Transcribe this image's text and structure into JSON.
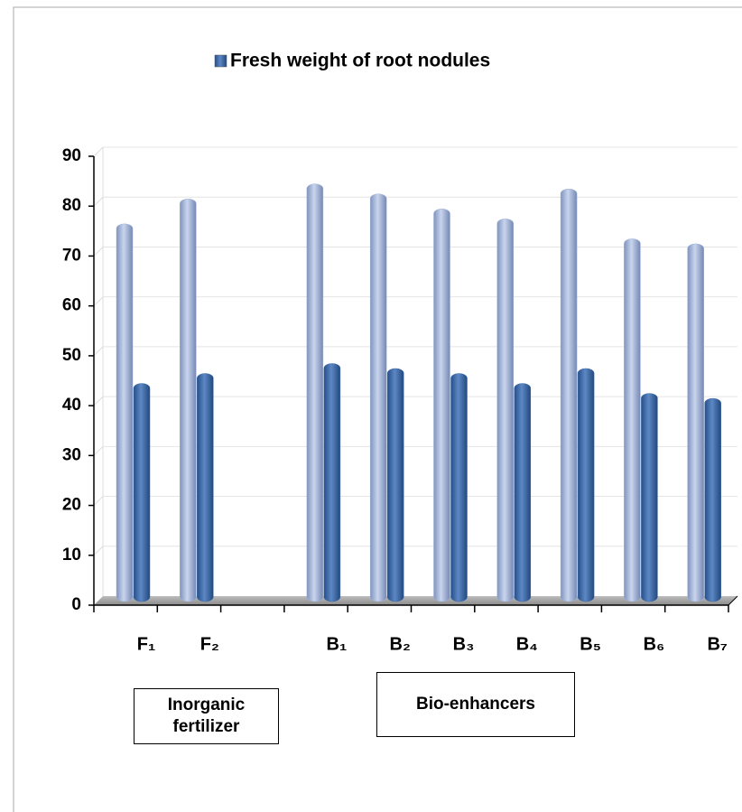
{
  "chart_data": {
    "type": "bar",
    "legend_title": null,
    "categories": [
      "F₁",
      "F₂",
      null,
      "B₁",
      "B₂",
      "B₃",
      "B₄",
      "B₅",
      "B₆",
      "B₇"
    ],
    "series": [
      {
        "color": "#9fb2d8",
        "values": [
          75,
          80,
          null,
          83,
          81,
          78,
          76,
          82,
          72,
          71
        ]
      },
      {
        "name": "Fresh weight of root nodules",
        "color": "#3e6aa6",
        "values": [
          43,
          45,
          null,
          47,
          46,
          45,
          43,
          46,
          41,
          40
        ]
      }
    ],
    "ylim": [
      0,
      90
    ],
    "yticks": [
      0,
      10,
      20,
      30,
      40,
      50,
      60,
      70,
      80,
      90
    ],
    "grid": true,
    "legend": "top",
    "annotations": [
      "Inorganic fertilizer",
      "Bio-enhancers"
    ]
  }
}
